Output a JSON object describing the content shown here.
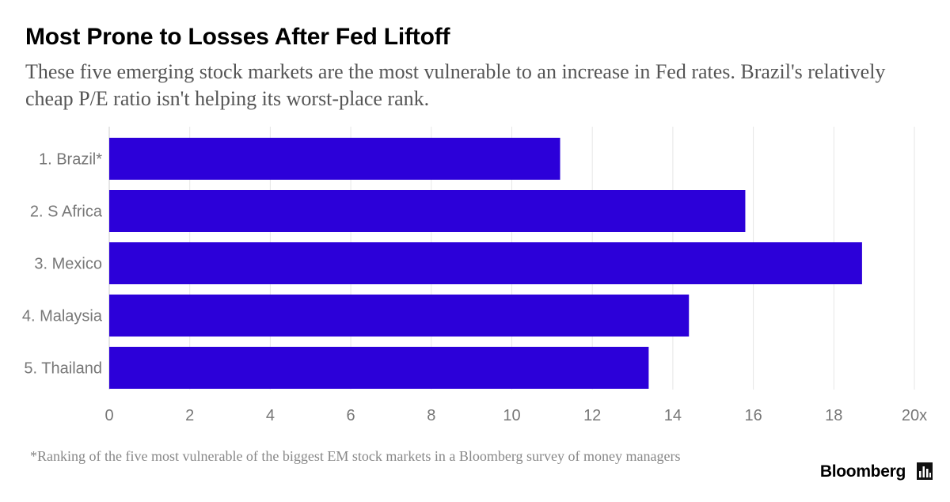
{
  "header": {
    "title": "Most Prone to Losses After Fed Liftoff",
    "subtitle": "These five emerging stock markets are the most vulnerable to an increase in Fed rates. Brazil's relatively cheap P/E ratio isn't helping its worst-place rank."
  },
  "chart_data": {
    "type": "bar",
    "orientation": "horizontal",
    "title": "Most Prone to Losses After Fed Liftoff",
    "categories": [
      "1. Brazil*",
      "2. S Africa",
      "3. Mexico",
      "4. Malaysia",
      "5. Thailand"
    ],
    "values": [
      11.2,
      15.8,
      18.7,
      14.4,
      13.4
    ],
    "xlim": [
      0,
      20
    ],
    "xticks": [
      "0",
      "2",
      "4",
      "6",
      "8",
      "10",
      "12",
      "14",
      "16",
      "18",
      "20x"
    ],
    "xlabel": "",
    "ylabel": "",
    "grid": true,
    "bar_color": "#2c00d9",
    "grid_color": "#e6e6e6"
  },
  "footer": {
    "footnote": "*Ranking of the five most vulnerable of the biggest EM stock markets in a Bloomberg survey of money managers",
    "brand": "Bloomberg",
    "brand_icon": "bloomberg-chart-icon"
  }
}
